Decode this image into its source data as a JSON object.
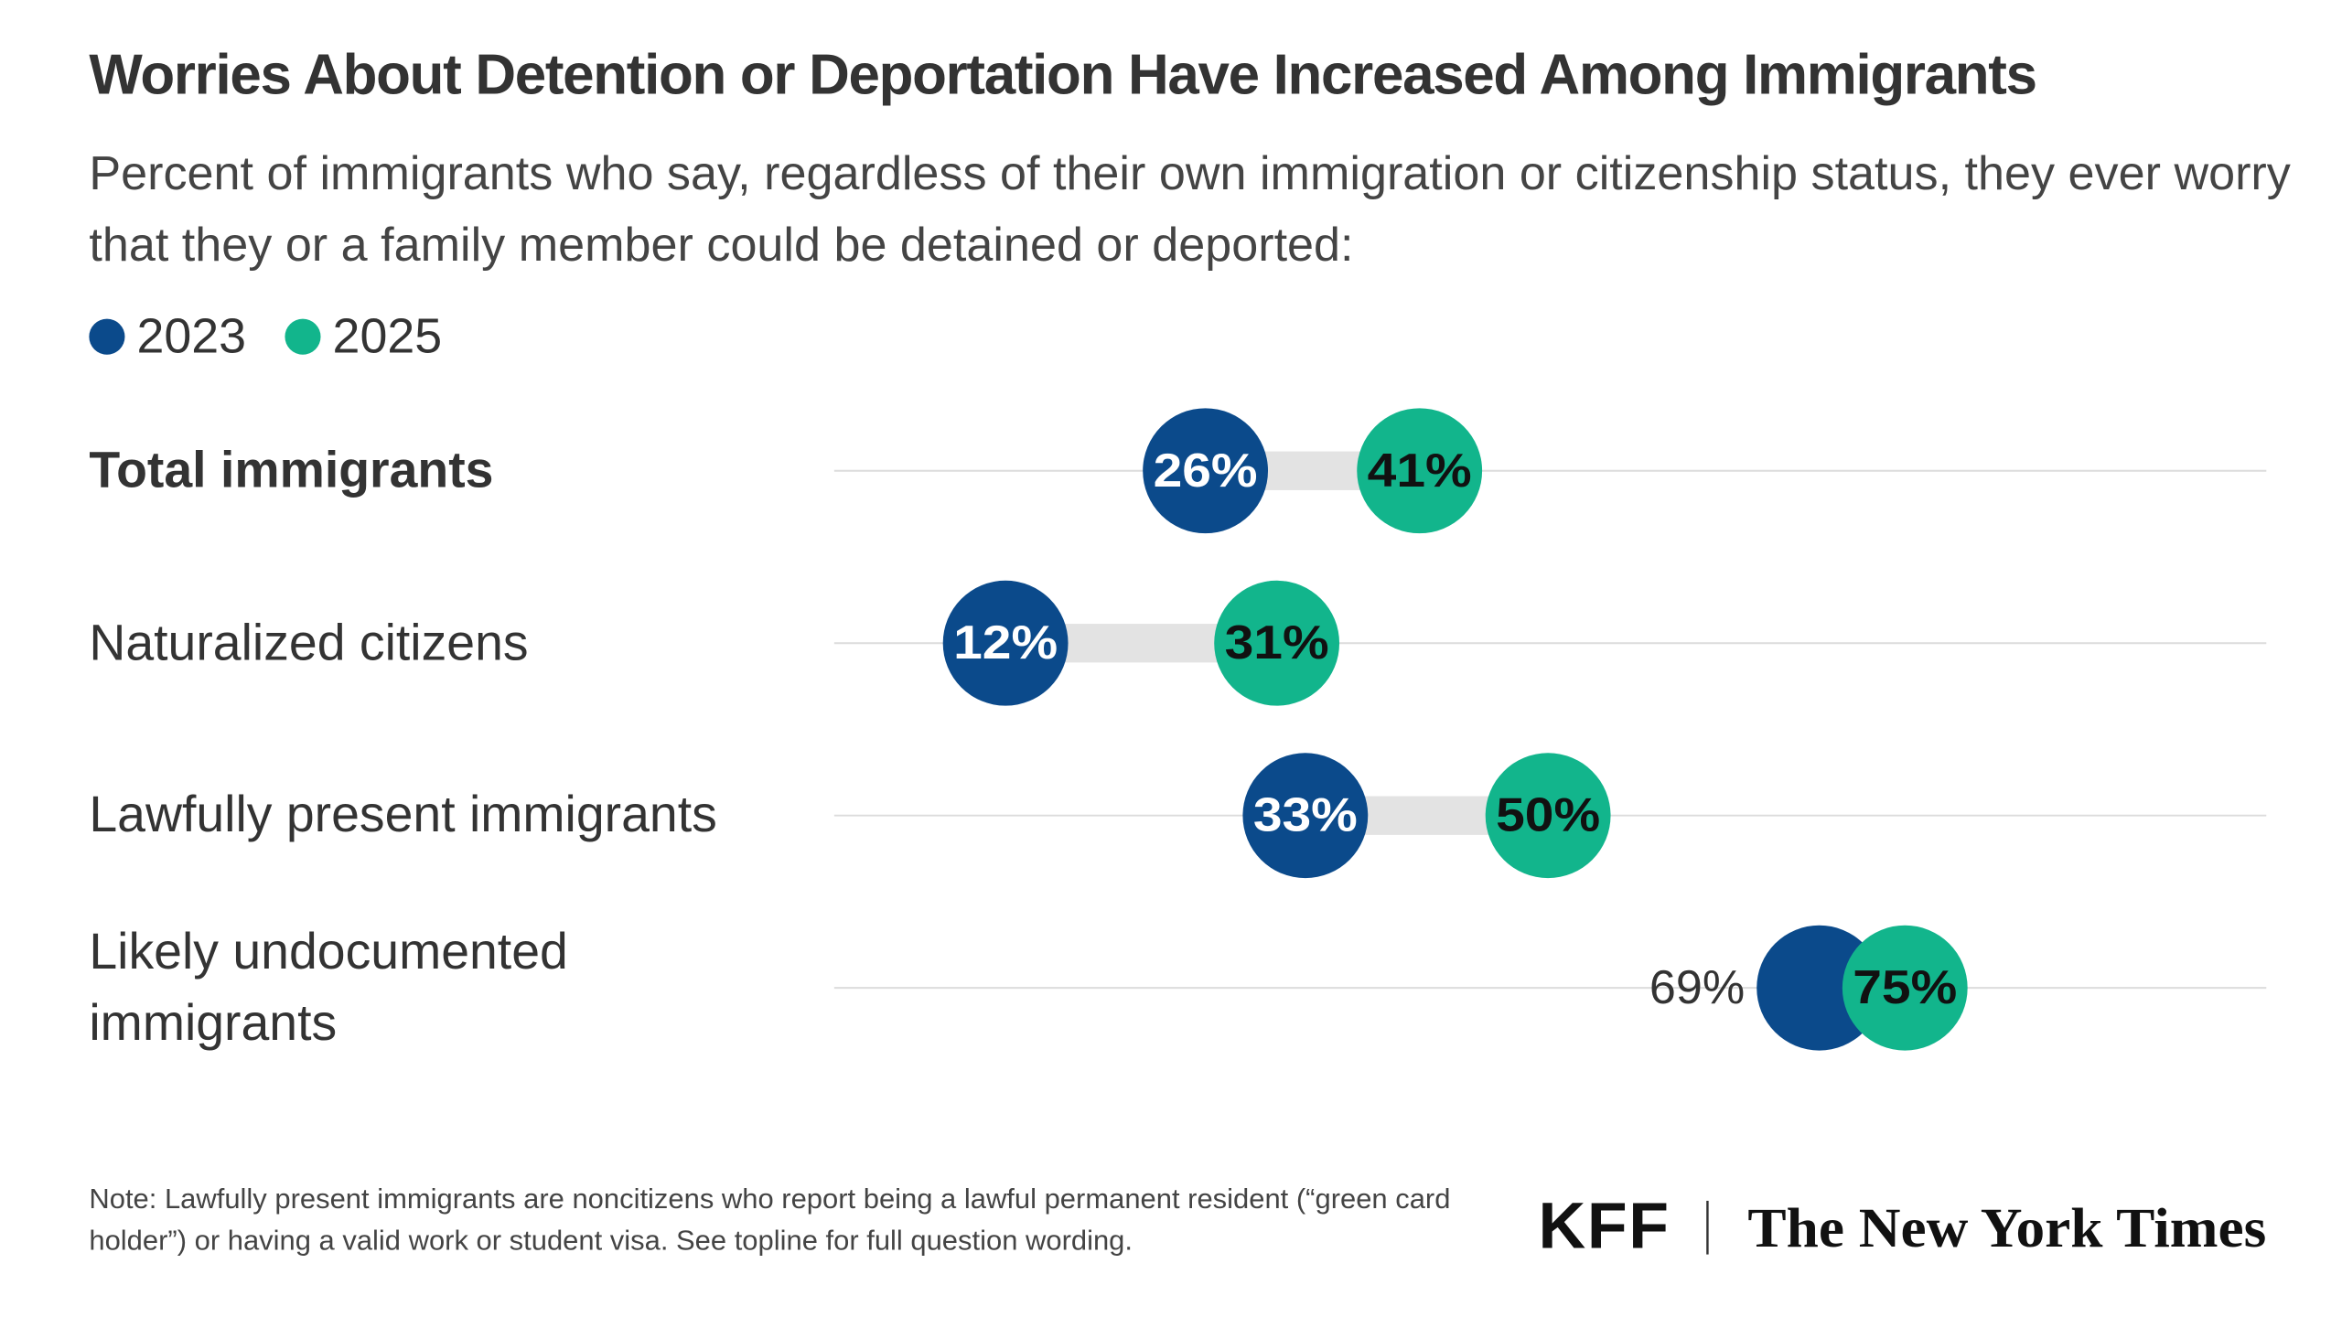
{
  "chart_data": {
    "type": "dumbbell",
    "title": "Worries About Detention or Deportation Have Increased Among Immigrants",
    "subtitle": "Percent of immigrants who say, regardless of their own immigration or citizenship status, they ever worry that they or a family member could be detained or deported:",
    "categories": [
      "Total immigrants",
      "Naturalized citizens",
      "Lawfully present immigrants",
      "Likely undocumented immigrants"
    ],
    "series": [
      {
        "name": "2023",
        "color": "#0b4a8b",
        "values": [
          26,
          12,
          33,
          69
        ],
        "value_labels": [
          "26%",
          "12%",
          "33%",
          "69%"
        ]
      },
      {
        "name": "2025",
        "color": "#12b58c",
        "values": [
          41,
          31,
          50,
          75
        ],
        "value_labels": [
          "41%",
          "31%",
          "50%",
          "75%"
        ]
      }
    ],
    "xlim": [
      0,
      100
    ],
    "note": "Note: Lawfully present immigrants are noncitizens who report being a lawful permanent resident (“green card holder”) or having a valid work or student visa. See topline for full question wording.",
    "sources": [
      "KFF",
      "The New York Times"
    ]
  }
}
